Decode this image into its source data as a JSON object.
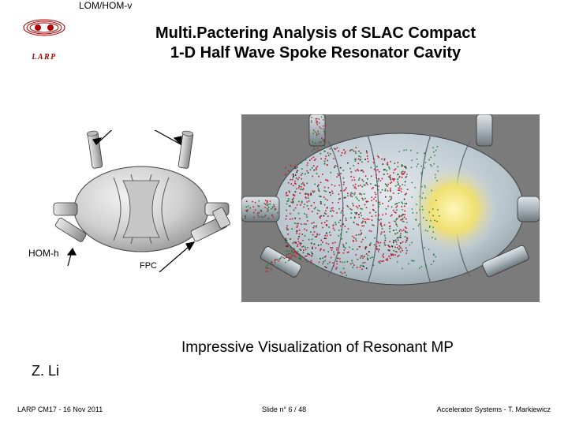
{
  "logo": {
    "text": "LARP",
    "color": "#b00000"
  },
  "title_line1": "Multi.Pactering Analysis of SLAC Compact",
  "title_line2": "1-D Half Wave Spoke Resonator Cavity",
  "labels": {
    "lom_hom_v": "LOM/HOM-v",
    "hom_h": "HOM-h",
    "fpc": "FPC"
  },
  "caption": "Impressive Visualization of Resonant MP",
  "author": "Z. Li",
  "footer": {
    "left": "LARP CM17 - 16 Nov 2011",
    "mid_prefix": "Slide n° ",
    "slide_current": 6,
    "slide_total": 48,
    "right": "Accelerator Systems  -  T. Markiewicz"
  },
  "diagram_left": {
    "type": "diagram",
    "description": "3D gray rendering of compact half-wave spoke resonator cavity with four ports",
    "body_fill": "#d9d9d9",
    "body_stroke": "#222222",
    "highlight": "#f4f4f4",
    "pointers": [
      {
        "from": "LOM/HOM-v",
        "to": "top-left-port"
      },
      {
        "from": "LOM/HOM-v",
        "to": "top-right-port"
      },
      {
        "from": "HOM-h",
        "to": "left-lower-port"
      },
      {
        "from": "FPC",
        "to": "right-lower-port"
      }
    ]
  },
  "diagram_right": {
    "type": "simulation-render",
    "description": "Same cavity translucent with dense multipacting electron scatter points",
    "background": "#808080",
    "cavity_surface": {
      "fill": "#c9d6de",
      "translucent_center": "#f5e98a"
    },
    "particle_colors": [
      "#c8102e",
      "#107c2e",
      "#1a1a1a"
    ],
    "particle_density": "high on left half, sparse on right"
  },
  "colors": {
    "title": "#000000",
    "background": "#ffffff",
    "red": "#c8102e",
    "green": "#107c2e",
    "gray_body": "#d0d4d8",
    "sim_bg": "#7b7b7b"
  }
}
